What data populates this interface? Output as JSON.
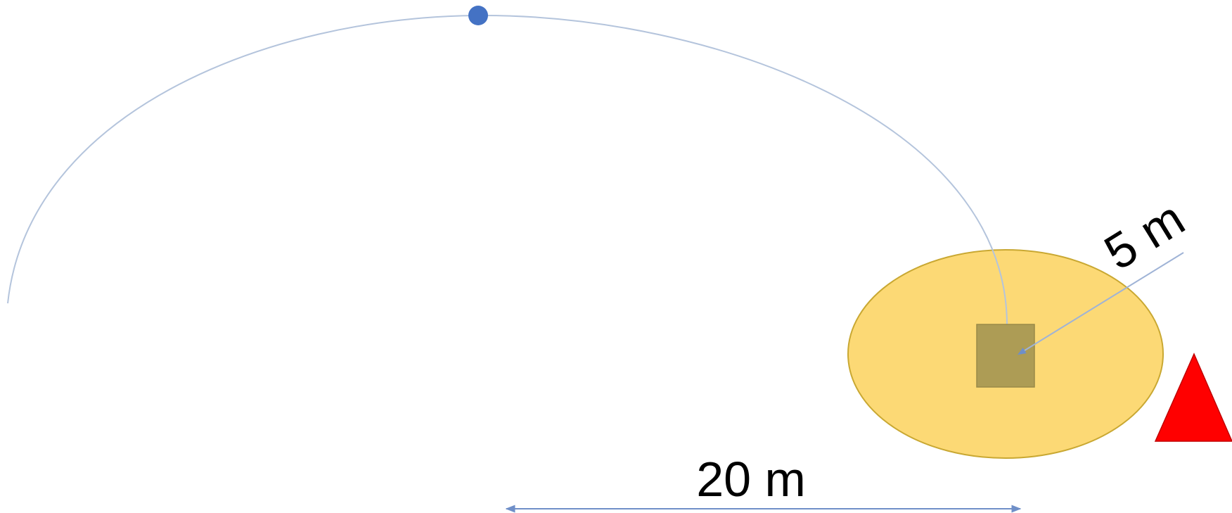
{
  "labels": {
    "radius": "5 m",
    "distance": "20 m"
  },
  "colors": {
    "background": "#ffffff",
    "trajectory": "#b4c4dc",
    "ball": "#4472c4",
    "zone_fill": "#fcd975",
    "zone_stroke": "#c9a832",
    "target_fill": "#ad9c55",
    "target_stroke": "#9a8a48",
    "marker_fill": "#ff0000",
    "marker_stroke": "#c00000",
    "dimension_line": "#6f8fc8",
    "radius_line": "#9fb3d6"
  },
  "icons": {
    "ball": "circle",
    "target": "square",
    "marker": "triangle"
  }
}
